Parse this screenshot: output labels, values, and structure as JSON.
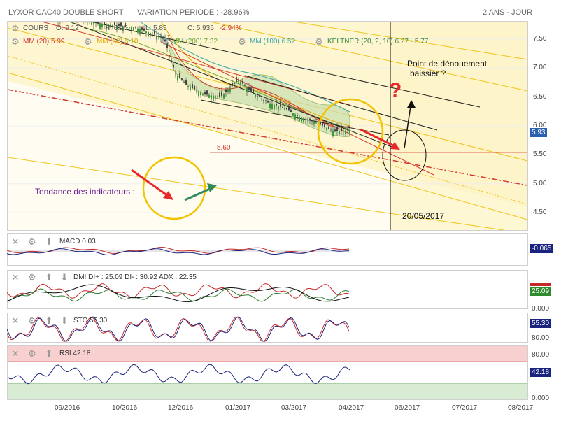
{
  "header": {
    "title": "LYXOR CAC40 DOUBLE SHORT",
    "variation": "VARIATION PERIODE : -28.96%",
    "period": "2 ANS - JOUR"
  },
  "price_legend": {
    "cours_label": "COURS",
    "open": "O: 6.12",
    "high": "H: 6.25",
    "low": "L: 5.85",
    "close": "C: 5.935",
    "change": "-2.94%",
    "mm20": "MM (20) 5.99",
    "mm60": "MM (60) 6.10",
    "mm200": "MM (200) 7.32",
    "mm100": "MM (100) 6.52",
    "keltner": "KELTNER (20, 2, 10) 6.27 - 5.77"
  },
  "annotations": {
    "denouement": "Point de dénouement",
    "baissier": "baissier ?",
    "question": "?",
    "level": "5.60",
    "tendance": "Tendance des indicateurs :",
    "date": "20/05/2017"
  },
  "indicators": {
    "macd": {
      "label": "MACD",
      "value": "0.03",
      "badge": "-0.065"
    },
    "dmi": {
      "label": "DMI",
      "text": "DI+ : 25.09 DI- : 30.92 ADX : 22.35",
      "badge": "25.09"
    },
    "sto": {
      "label": "STO",
      "value": "55.30",
      "badge": "55.30"
    },
    "rsi": {
      "label": "RSI",
      "value": "42.18",
      "badge": "42.18"
    }
  },
  "last_price_badge": "5.93",
  "axis_extra": {
    "dmi_zero": "0.000",
    "sto_80": "80.00",
    "sto_zero": "0.000",
    "rsi_80": "80.00",
    "rsi_zero": "0.000"
  },
  "colors": {
    "mm20": "#d43a2e",
    "mm60": "#e2a800",
    "mm200": "#6fa72a",
    "mm100": "#3aa7a7",
    "keltner": "#3a8a3a",
    "badge_blue": "#2b5fb0",
    "badge_green": "#2e8b2e",
    "badge_navy": "#1a237e"
  },
  "chart_data": {
    "type": "candlestick",
    "ylim": [
      4.2,
      7.8
    ],
    "y_ticks": [
      4.5,
      5.0,
      5.5,
      6.0,
      6.5,
      7.0,
      7.5
    ],
    "x_ticks": [
      "09/2016",
      "10/2016",
      "12/2016",
      "01/2017",
      "03/2017",
      "04/2017",
      "06/2017",
      "07/2017",
      "08/2017"
    ],
    "last_price": 5.93,
    "horizontal_level": 5.6,
    "close_path": [
      [
        "2016-07-20",
        7.95
      ],
      [
        "2016-08-15",
        7.85
      ],
      [
        "2016-09-15",
        7.75
      ],
      [
        "2016-10-10",
        7.7
      ],
      [
        "2016-10-25",
        7.6
      ],
      [
        "2016-11-05",
        7.5
      ],
      [
        "2016-11-15",
        6.9
      ],
      [
        "2016-11-25",
        6.7
      ],
      [
        "2016-12-10",
        6.55
      ],
      [
        "2016-12-25",
        6.5
      ],
      [
        "2017-01-10",
        6.8
      ],
      [
        "2017-01-20",
        6.6
      ],
      [
        "2017-02-05",
        6.4
      ],
      [
        "2017-02-20",
        6.3
      ],
      [
        "2017-03-05",
        6.15
      ],
      [
        "2017-03-20",
        6.05
      ],
      [
        "2017-04-05",
        5.9
      ],
      [
        "2017-04-18",
        5.93
      ]
    ]
  }
}
